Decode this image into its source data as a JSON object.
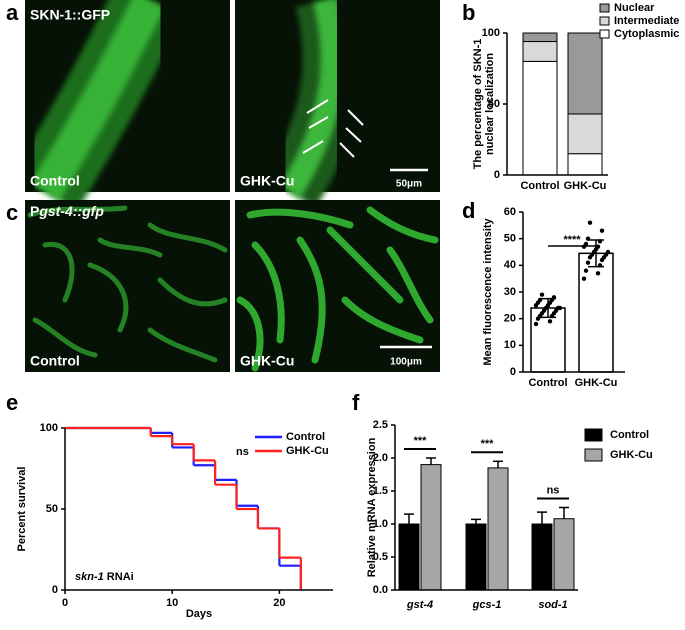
{
  "panel_labels": [
    "a",
    "b",
    "c",
    "d",
    "e",
    "f"
  ],
  "images": [
    {
      "top_label": "SKN-1::GFP",
      "bottom_label": "Control"
    },
    {
      "bottom_label": "GHK-Cu",
      "scale_bar": "50μm"
    },
    {
      "top_label": [
        "P",
        "gst-4::gfp"
      ],
      "bottom_label": "Control"
    },
    {
      "bottom_label": "GHK-Cu",
      "scale_bar": "100μm"
    }
  ],
  "chart_data": [
    {
      "type": "stacked_bar",
      "ylabel": [
        "The percentage of SKN-1",
        "nuclear localization"
      ],
      "categories": [
        "Control",
        "GHK-Cu"
      ],
      "series": [
        {
          "name": "Cytoplasmic",
          "color": "#ffffff",
          "values": [
            80,
            15
          ]
        },
        {
          "name": "Intermediate",
          "color": "#d9d9d9",
          "values": [
            14,
            28
          ]
        },
        {
          "name": "Nuclear",
          "color": "#999999",
          "values": [
            6,
            57
          ]
        }
      ],
      "ylim": [
        0,
        100
      ],
      "yticks": [
        0,
        50,
        100
      ]
    },
    {
      "type": "bar",
      "ylabel": "Mean fluorescence intensity",
      "categories": [
        "Control",
        "GHK-Cu"
      ],
      "values": [
        24,
        44.5
      ],
      "errors": [
        3.5,
        5
      ],
      "color": "#ffffff",
      "points": [
        [
          18,
          19,
          20,
          21,
          21,
          22,
          22,
          23,
          23,
          24,
          24,
          24,
          25,
          25,
          26,
          26,
          27,
          27,
          28,
          29
        ],
        [
          35,
          37,
          38,
          40,
          41,
          42,
          43,
          43,
          44,
          44,
          45,
          45,
          46,
          47,
          47,
          48,
          49,
          50,
          53,
          56
        ]
      ],
      "ylim": [
        0,
        60
      ],
      "yticks": [
        0,
        10,
        20,
        30,
        40,
        50,
        60
      ],
      "annotation": "****"
    },
    {
      "type": "line",
      "xlabel": "Days",
      "ylabel": "Percent survival",
      "subtitle": [
        "skn-1",
        " RNAi"
      ],
      "annotation": "ns",
      "x": [
        0,
        8,
        10,
        12,
        14,
        16,
        18,
        20,
        22
      ],
      "series": [
        {
          "name": "Control",
          "color": "#1f1fff",
          "values": [
            100,
            97,
            88,
            77,
            68,
            52,
            38,
            15,
            0
          ]
        },
        {
          "name": "GHK-Cu",
          "color": "#ff2020",
          "values": [
            100,
            95,
            90,
            80,
            65,
            50,
            38,
            20,
            0
          ]
        }
      ],
      "xlim": [
        0,
        25
      ],
      "xticks": [
        0,
        10,
        20
      ],
      "ylim": [
        0,
        100
      ],
      "yticks": [
        0,
        50,
        100
      ]
    },
    {
      "type": "grouped_bar",
      "ylabel": "Relative mRNA expression",
      "categories": [
        "gst-4",
        "gcs-1",
        "sod-1"
      ],
      "series": [
        {
          "name": "Control",
          "color": "#000000",
          "values": [
            1.0,
            1.0,
            1.0
          ],
          "errors": [
            0.15,
            0.07,
            0.18
          ]
        },
        {
          "name": "GHK-Cu",
          "color": "#a6a6a6",
          "values": [
            1.9,
            1.85,
            1.08
          ],
          "errors": [
            0.1,
            0.1,
            0.17
          ]
        }
      ],
      "ylim": [
        0,
        2.5
      ],
      "yticks": [
        {
          "value": 0,
          "label": "0.0"
        },
        0.5,
        {
          "value": 1,
          "label": "1.0"
        },
        1.5,
        {
          "value": 2,
          "label": "2.0"
        },
        2.5
      ],
      "annotations": [
        "***",
        "***",
        "ns"
      ]
    }
  ]
}
